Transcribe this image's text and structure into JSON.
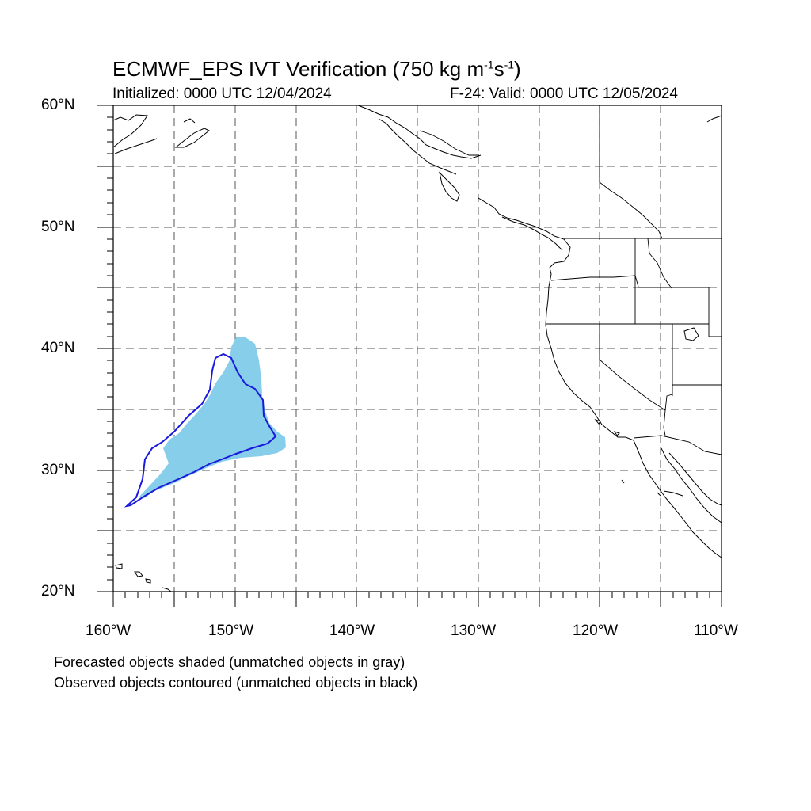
{
  "title": {
    "main_prefix": "ECMWF_EPS IVT Verification (750 kg m",
    "exp1": "-1",
    "mid": "s",
    "exp2": "-1",
    "suffix": ")"
  },
  "subtitle_left": "Initialized: 0000 UTC 12/04/2024",
  "subtitle_right": "F-24: Valid: 0000 UTC 12/05/2024",
  "lat_labels": [
    "60°N",
    "50°N",
    "40°N",
    "30°N",
    "20°N"
  ],
  "lon_labels": [
    "160°W",
    "150°W",
    "140°W",
    "130°W",
    "120°W",
    "110°W"
  ],
  "captions": [
    "Forecasted objects shaded (unmatched objects in gray)",
    "Observed objects contoured (unmatched objects in black)"
  ],
  "map_extent": {
    "lon": [
      -160,
      -110
    ],
    "lat": [
      20,
      60
    ]
  },
  "colors": {
    "forecast_fill": "#87ceeb",
    "observed_contour": "#1a1adc",
    "coastline": "#000000",
    "grid": "#555555"
  }
}
